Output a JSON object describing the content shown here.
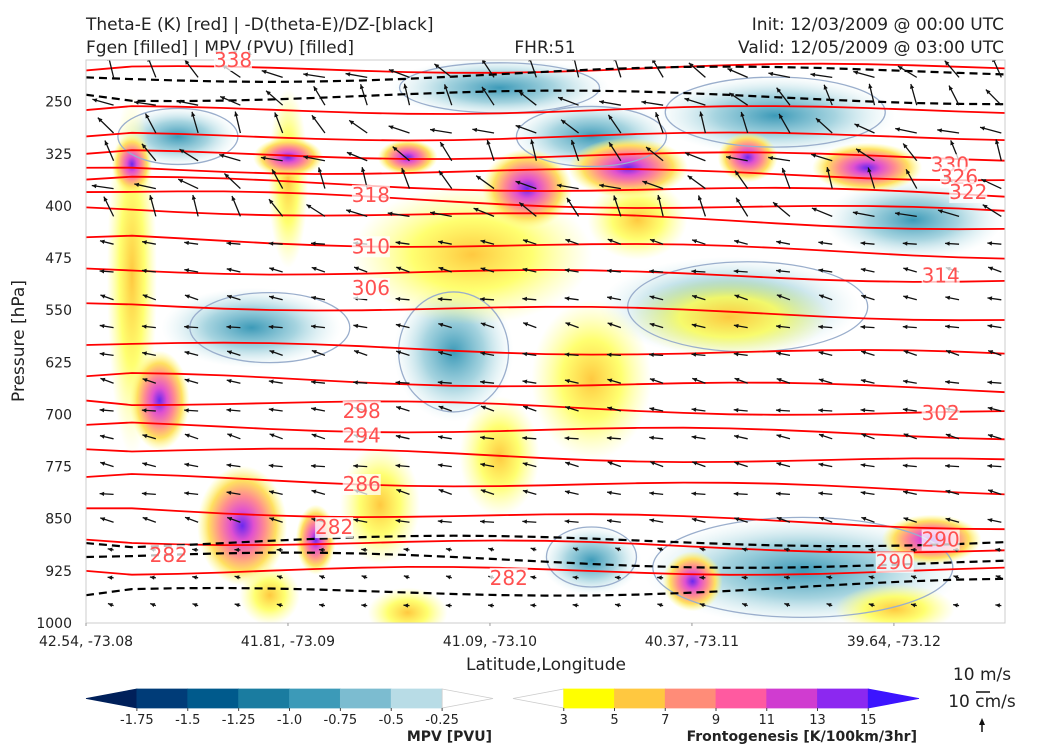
{
  "header": {
    "title_left_1": "Theta-E (K) [red] | -D(theta-E)/DZ-[black]",
    "title_left_2": "Fgen [filled] | MPV (PVU) [filled]",
    "fhr": "FHR:51",
    "init": "Init: 12/03/2009 @ 00:00 UTC",
    "valid": "Valid: 12/05/2009 @ 03:00 UTC"
  },
  "chart_data": {
    "type": "contour-cross-section",
    "xlabel": "Latitude,Longitude",
    "ylabel": "Pressure [hPa]",
    "x_ticks": [
      "42.54, -73.08",
      "41.81, -73.09",
      "41.09, -73.10",
      "40.37, -73.11",
      "39.64, -73.12"
    ],
    "y_ticks": [
      250,
      325,
      400,
      475,
      550,
      625,
      700,
      775,
      850,
      925,
      1000
    ],
    "ylim": [
      1000,
      190
    ],
    "theta_e": {
      "color": "#ff0000",
      "labels": [
        {
          "text": "338",
          "p": 190,
          "xi": 0.16
        },
        {
          "text": "318",
          "p": 384,
          "xi": 0.31
        },
        {
          "text": "310",
          "p": 458,
          "xi": 0.31
        },
        {
          "text": "306",
          "p": 518,
          "xi": 0.31
        },
        {
          "text": "298",
          "p": 695,
          "xi": 0.3
        },
        {
          "text": "294",
          "p": 730,
          "xi": 0.3
        },
        {
          "text": "286",
          "p": 800,
          "xi": 0.3
        },
        {
          "text": "282",
          "p": 862,
          "xi": 0.27
        },
        {
          "text": "330",
          "p": 340,
          "xi": 0.94
        },
        {
          "text": "326",
          "p": 358,
          "xi": 0.95
        },
        {
          "text": "322",
          "p": 380,
          "xi": 0.96
        },
        {
          "text": "314",
          "p": 500,
          "xi": 0.93
        },
        {
          "text": "302",
          "p": 698,
          "xi": 0.93
        },
        {
          "text": "290",
          "p": 880,
          "xi": 0.93
        },
        {
          "text": "290",
          "p": 912,
          "xi": 0.88
        },
        {
          "text": "282",
          "p": 902,
          "xi": 0.09
        },
        {
          "text": "282",
          "p": 935,
          "xi": 0.46
        }
      ]
    },
    "frontogenesis_colorbar": {
      "title": "Frontogenesis [K/100km/3hr]",
      "ticks": [
        "3",
        "5",
        "7",
        "9",
        "11",
        "13",
        "15"
      ],
      "colors": [
        "#ffffff",
        "#ffff00",
        "#ffc840",
        "#ff8c78",
        "#ff5aa0",
        "#d03cd0",
        "#8c28f0",
        "#3c14ff"
      ]
    },
    "mpv_colorbar": {
      "title": "MPV [PVU]",
      "ticks": [
        "-1.75",
        "-1.5",
        "-1.25",
        "-1.0",
        "-0.75",
        "-0.5",
        "-0.25"
      ],
      "colors": [
        "#00205a",
        "#003c78",
        "#005a8c",
        "#1a7ca0",
        "#3c9ab8",
        "#7cbcd0",
        "#b8dce6",
        "#ffffff"
      ]
    },
    "wind_legend": {
      "horizontal": "10 m/s",
      "vertical": "10 cm/s"
    }
  }
}
